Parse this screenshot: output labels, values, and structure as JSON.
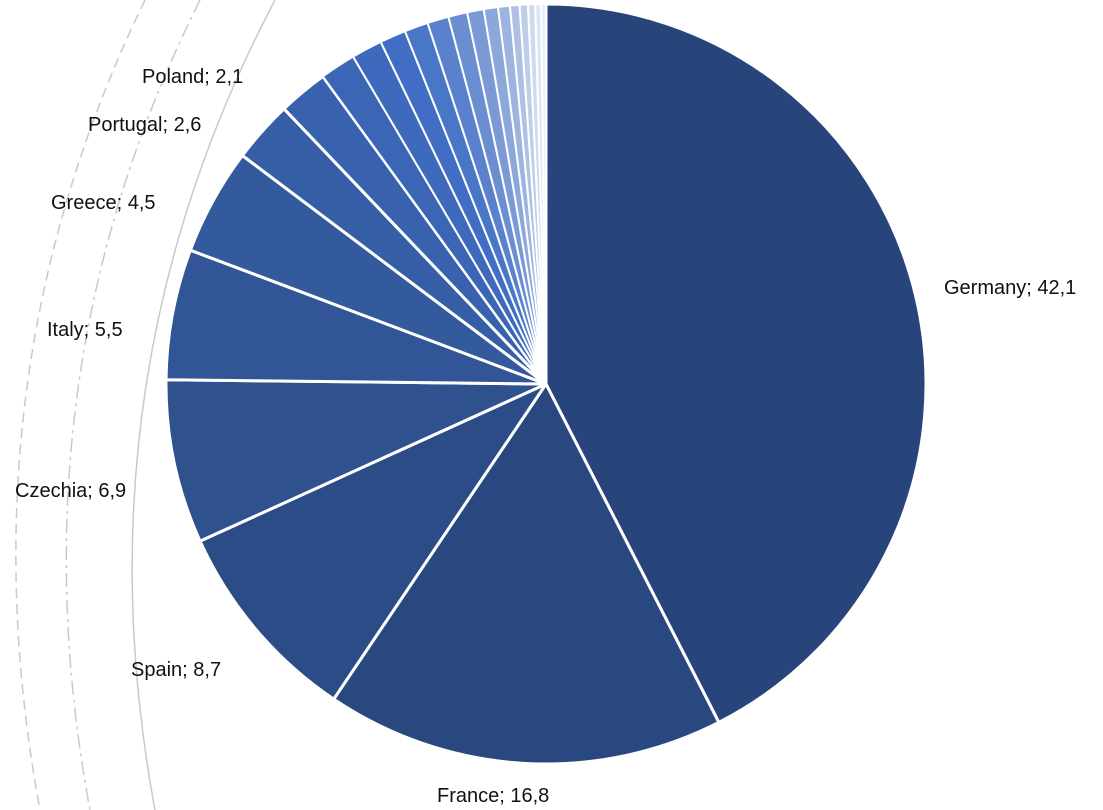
{
  "chart_data": {
    "type": "pie",
    "title": "",
    "start_angle": "12 o'clock",
    "direction": "clockwise",
    "slices": [
      {
        "label": "Germany",
        "value": 42.1,
        "display": "Germany; 42,1",
        "color": "#27457a"
      },
      {
        "label": "France",
        "value": 16.8,
        "display": "France; 16,8",
        "color": "#2a4880"
      },
      {
        "label": "Spain",
        "value": 8.7,
        "display": "Spain; 8,7",
        "color": "#2c4c87"
      },
      {
        "label": "Czechia",
        "value": 6.9,
        "display": "Czechia; 6,9",
        "color": "#2f518e"
      },
      {
        "label": "Italy",
        "value": 5.5,
        "display": "Italy; 5,5",
        "color": "#315596"
      },
      {
        "label": "Greece",
        "value": 4.5,
        "display": "Greece; 4,5",
        "color": "#345a9e"
      },
      {
        "label": "Portugal",
        "value": 2.6,
        "display": "Portugal; 2,6",
        "color": "#365ea6"
      },
      {
        "label": "Poland",
        "value": 2.1,
        "display": "Poland; 2,1",
        "color": "#3962ae"
      },
      {
        "label": "",
        "value": 1.5,
        "display": "",
        "color": "#3b66b5"
      },
      {
        "label": "",
        "value": 1.3,
        "display": "",
        "color": "#3e6abd"
      },
      {
        "label": "",
        "value": 1.1,
        "display": "",
        "color": "#416ec4"
      },
      {
        "label": "",
        "value": 1.0,
        "display": "",
        "color": "#4a76c8"
      },
      {
        "label": "",
        "value": 0.9,
        "display": "",
        "color": "#5a82cc"
      },
      {
        "label": "",
        "value": 0.8,
        "display": "",
        "color": "#6a8ed0"
      },
      {
        "label": "",
        "value": 0.7,
        "display": "",
        "color": "#7b9ad5"
      },
      {
        "label": "",
        "value": 0.6,
        "display": "",
        "color": "#8ca7da"
      },
      {
        "label": "",
        "value": 0.5,
        "display": "",
        "color": "#9db4df"
      },
      {
        "label": "",
        "value": 0.4,
        "display": "",
        "color": "#aec1e4"
      },
      {
        "label": "",
        "value": 0.35,
        "display": "",
        "color": "#bfcde9"
      },
      {
        "label": "",
        "value": 0.3,
        "display": "",
        "color": "#cfdaee"
      },
      {
        "label": "",
        "value": 0.25,
        "display": "",
        "color": "#dde5f3"
      },
      {
        "label": "",
        "value": 0.2,
        "display": "",
        "color": "#e8eef7"
      }
    ],
    "separator_color": "#ffffff",
    "guide_arc_color": "#c9c9c9"
  }
}
